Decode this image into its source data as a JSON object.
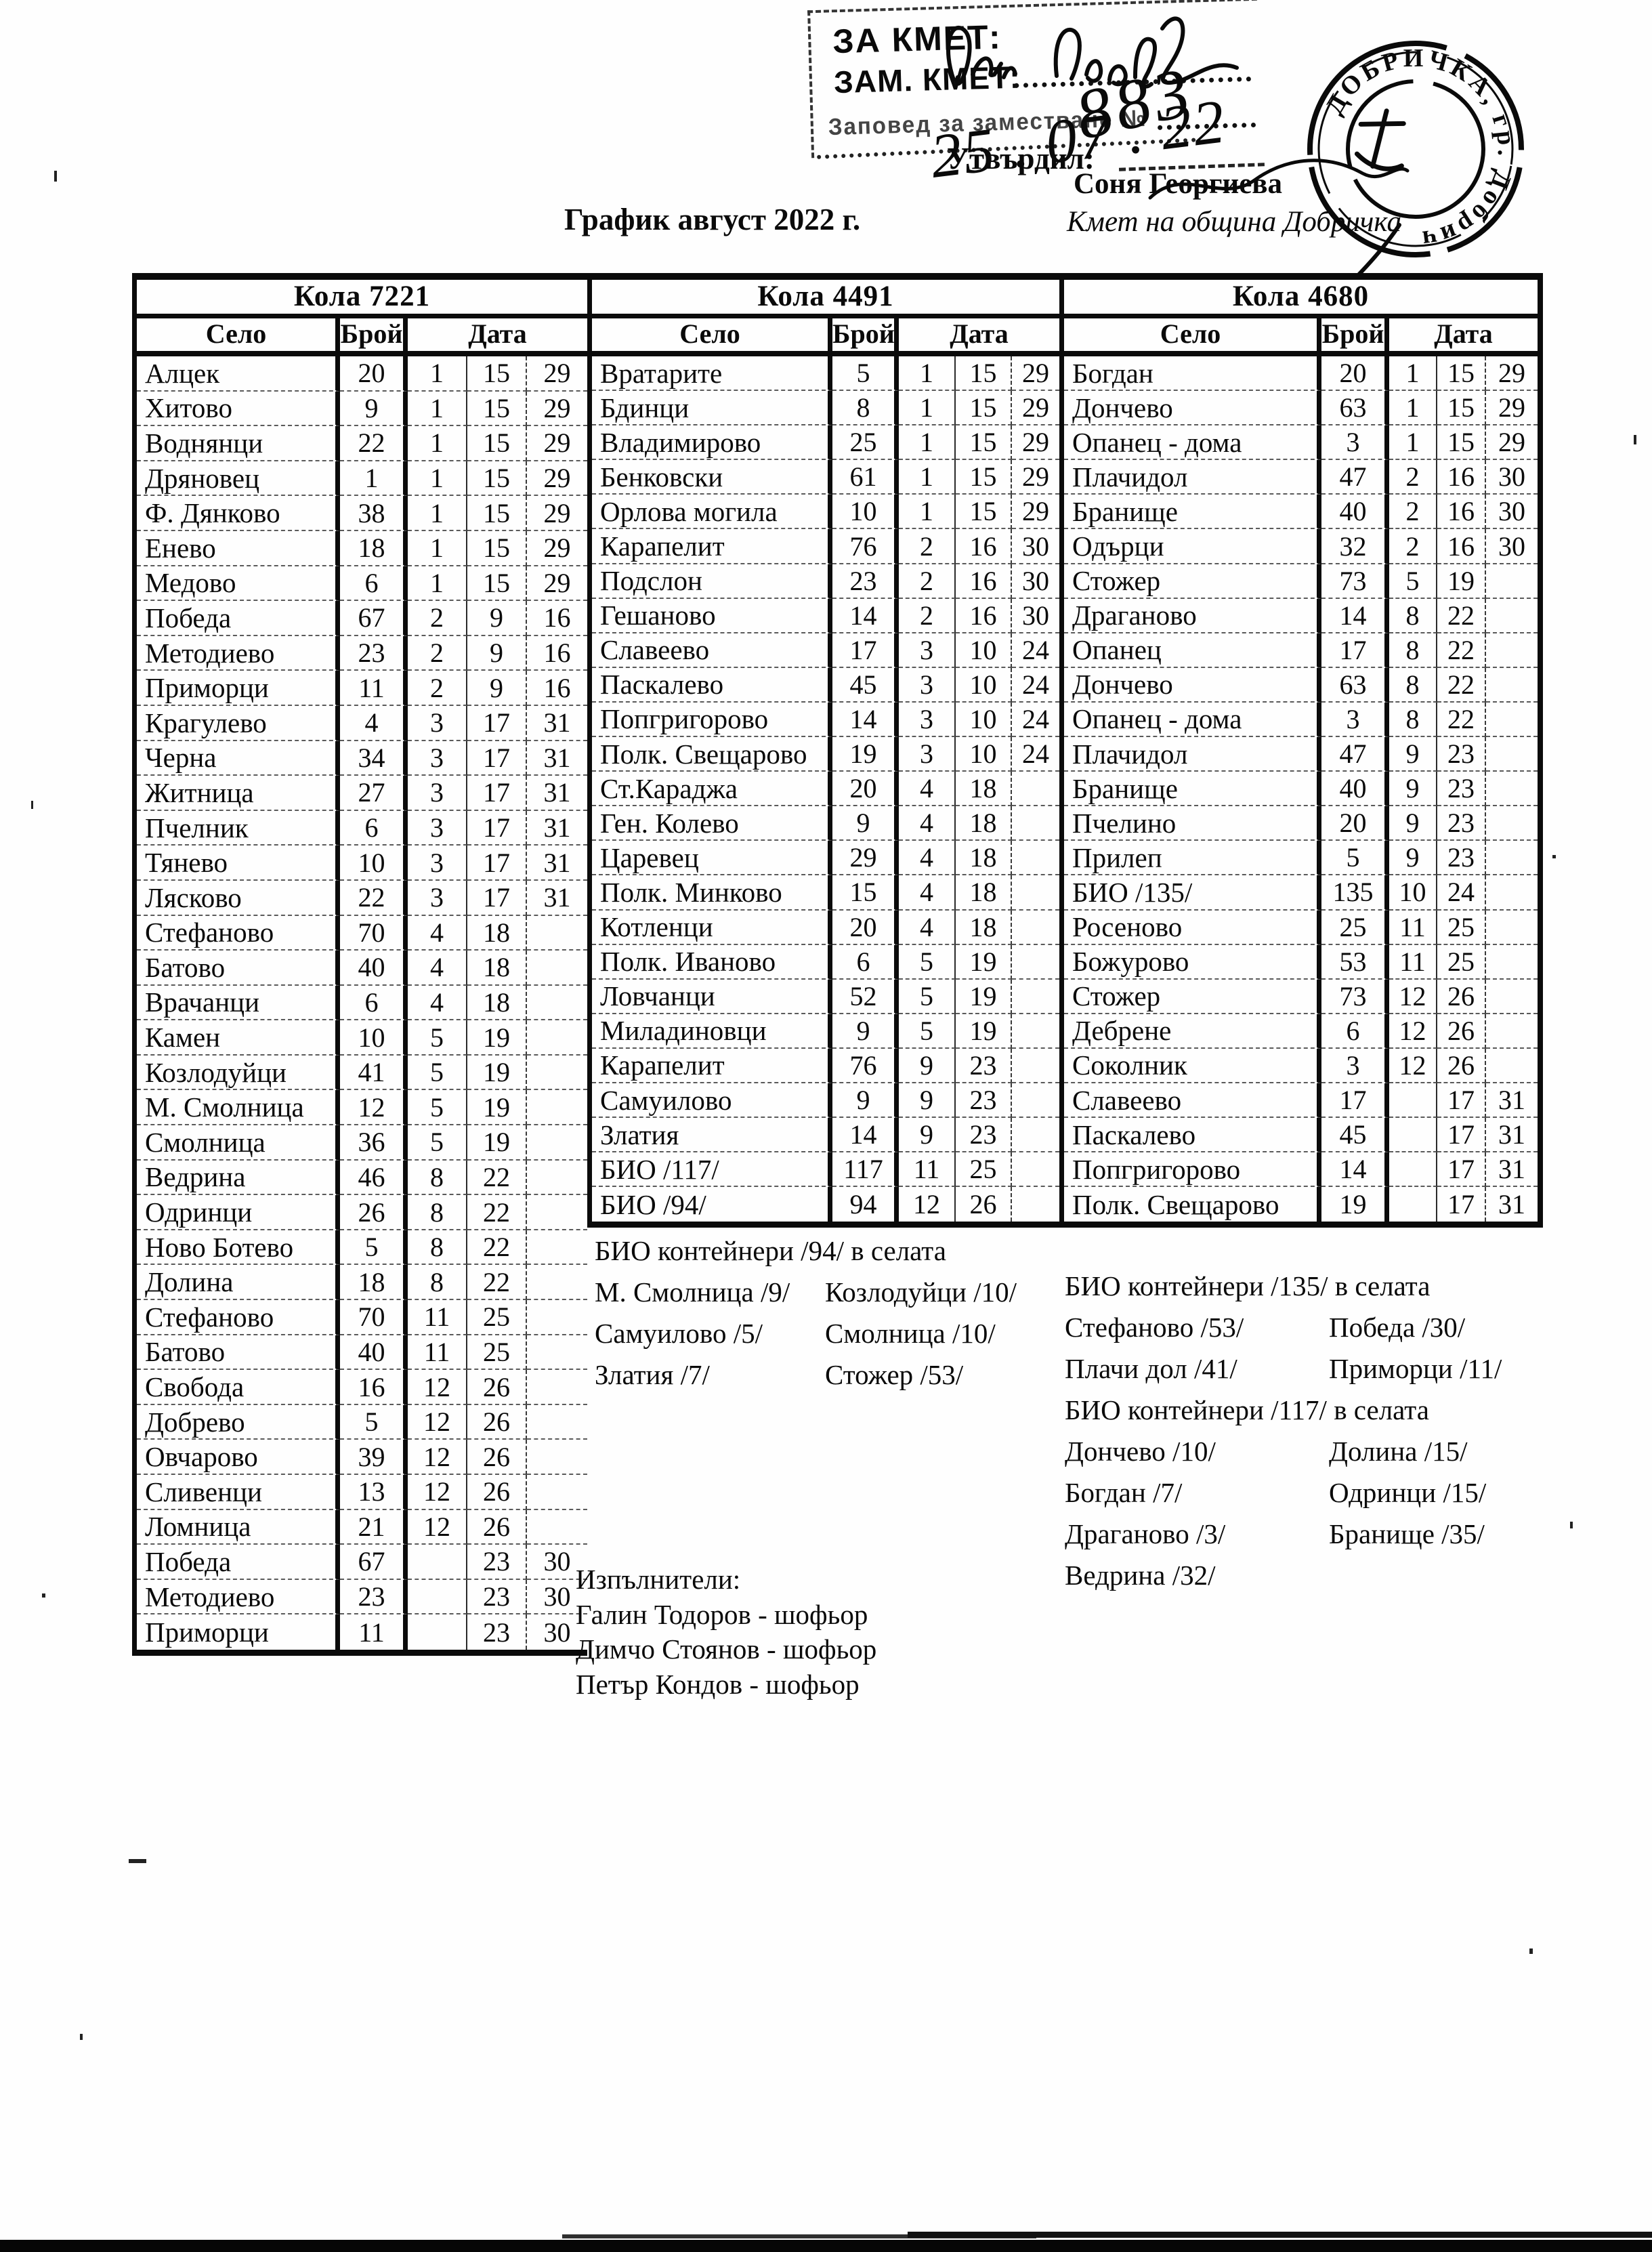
{
  "header": {
    "approval_box": {
      "for_mayor_label": "ЗА КМЕТ:",
      "deputy_mayor_label": "ЗАМ. КМЕТ:",
      "order_label": "Заповед за заместване №",
      "handwritten_order_number": "883",
      "handwritten_date": "25 . 07 . 22",
      "approved_label": "Утвърдил:"
    },
    "round_stamp_text": "ДОБРИЧКА, гр. Добрич",
    "signer_name": "Соня Георгиева",
    "signer_title": "Кмет на община Добричка",
    "doc_title": "График август 2022 г."
  },
  "table": {
    "column_headers": [
      "Село",
      "Брой",
      "Дата"
    ],
    "sections": [
      {
        "vehicle": "Кола 7221",
        "rows": [
          [
            "Алцек",
            "20",
            "1",
            "15",
            "29"
          ],
          [
            "Хитово",
            "9",
            "1",
            "15",
            "29"
          ],
          [
            "Воднянци",
            "22",
            "1",
            "15",
            "29"
          ],
          [
            "Дряновец",
            "1",
            "1",
            "15",
            "29"
          ],
          [
            "Ф. Дянково",
            "38",
            "1",
            "15",
            "29"
          ],
          [
            "Енево",
            "18",
            "1",
            "15",
            "29"
          ],
          [
            "Медово",
            "6",
            "1",
            "15",
            "29"
          ],
          [
            "Победа",
            "67",
            "2",
            "9",
            "16"
          ],
          [
            "Методиево",
            "23",
            "2",
            "9",
            "16"
          ],
          [
            "Приморци",
            "11",
            "2",
            "9",
            "16"
          ],
          [
            "Крагулево",
            "4",
            "3",
            "17",
            "31"
          ],
          [
            "Черна",
            "34",
            "3",
            "17",
            "31"
          ],
          [
            "Житница",
            "27",
            "3",
            "17",
            "31"
          ],
          [
            "Пчелник",
            "6",
            "3",
            "17",
            "31"
          ],
          [
            "Тянево",
            "10",
            "3",
            "17",
            "31"
          ],
          [
            "Лясково",
            "22",
            "3",
            "17",
            "31"
          ],
          [
            "Стефаново",
            "70",
            "4",
            "18",
            ""
          ],
          [
            "Батово",
            "40",
            "4",
            "18",
            ""
          ],
          [
            "Врачанци",
            "6",
            "4",
            "18",
            ""
          ],
          [
            "Камен",
            "10",
            "5",
            "19",
            ""
          ],
          [
            "Козлодуйци",
            "41",
            "5",
            "19",
            ""
          ],
          [
            "М. Смолница",
            "12",
            "5",
            "19",
            ""
          ],
          [
            "Смолница",
            "36",
            "5",
            "19",
            ""
          ],
          [
            "Ведрина",
            "46",
            "8",
            "22",
            ""
          ],
          [
            "Одринци",
            "26",
            "8",
            "22",
            ""
          ],
          [
            "Ново Ботево",
            "5",
            "8",
            "22",
            ""
          ],
          [
            "Долина",
            "18",
            "8",
            "22",
            ""
          ],
          [
            "Стефаново",
            "70",
            "11",
            "25",
            ""
          ],
          [
            "Батово",
            "40",
            "11",
            "25",
            ""
          ],
          [
            "Свобода",
            "16",
            "12",
            "26",
            ""
          ],
          [
            "Добрево",
            "5",
            "12",
            "26",
            ""
          ],
          [
            "Овчарово",
            "39",
            "12",
            "26",
            ""
          ],
          [
            "Сливенци",
            "13",
            "12",
            "26",
            ""
          ],
          [
            "Ломница",
            "21",
            "12",
            "26",
            ""
          ],
          [
            "Победа",
            "67",
            "",
            "23",
            "30"
          ],
          [
            "Методиево",
            "23",
            "",
            "23",
            "30"
          ],
          [
            "Приморци",
            "11",
            "",
            "23",
            "30"
          ]
        ]
      },
      {
        "vehicle": "Кола 4491",
        "rows": [
          [
            "Вратарите",
            "5",
            "1",
            "15",
            "29"
          ],
          [
            "Бдинци",
            "8",
            "1",
            "15",
            "29"
          ],
          [
            "Владимирово",
            "25",
            "1",
            "15",
            "29"
          ],
          [
            "Бенковски",
            "61",
            "1",
            "15",
            "29"
          ],
          [
            "Орлова могила",
            "10",
            "1",
            "15",
            "29"
          ],
          [
            "Карапелит",
            "76",
            "2",
            "16",
            "30"
          ],
          [
            "Подслон",
            "23",
            "2",
            "16",
            "30"
          ],
          [
            "Гешаново",
            "14",
            "2",
            "16",
            "30"
          ],
          [
            "Славеево",
            "17",
            "3",
            "10",
            "24"
          ],
          [
            "Паскалево",
            "45",
            "3",
            "10",
            "24"
          ],
          [
            "Попгригорово",
            "14",
            "3",
            "10",
            "24"
          ],
          [
            "Полк. Свещарово",
            "19",
            "3",
            "10",
            "24"
          ],
          [
            "Ст.Караджа",
            "20",
            "4",
            "18",
            ""
          ],
          [
            "Ген. Колево",
            "9",
            "4",
            "18",
            ""
          ],
          [
            "Царевец",
            "29",
            "4",
            "18",
            ""
          ],
          [
            "Полк. Минково",
            "15",
            "4",
            "18",
            ""
          ],
          [
            "Котленци",
            "20",
            "4",
            "18",
            ""
          ],
          [
            "Полк. Иваново",
            "6",
            "5",
            "19",
            ""
          ],
          [
            "Ловчанци",
            "52",
            "5",
            "19",
            ""
          ],
          [
            "Миладиновци",
            "9",
            "5",
            "19",
            ""
          ],
          [
            "Карапелит",
            "76",
            "9",
            "23",
            ""
          ],
          [
            "Самуилово",
            "9",
            "9",
            "23",
            ""
          ],
          [
            "Златия",
            "14",
            "9",
            "23",
            ""
          ],
          [
            "БИО /117/",
            "117",
            "11",
            "25",
            ""
          ],
          [
            "БИО /94/",
            "94",
            "12",
            "26",
            ""
          ]
        ]
      },
      {
        "vehicle": "Кола 4680",
        "rows": [
          [
            "Богдан",
            "20",
            "1",
            "15",
            "29"
          ],
          [
            "Дончево",
            "63",
            "1",
            "15",
            "29"
          ],
          [
            "Опанец - дома",
            "3",
            "1",
            "15",
            "29"
          ],
          [
            "Плачидол",
            "47",
            "2",
            "16",
            "30"
          ],
          [
            "Бранище",
            "40",
            "2",
            "16",
            "30"
          ],
          [
            "Одърци",
            "32",
            "2",
            "16",
            "30"
          ],
          [
            "Стожер",
            "73",
            "5",
            "19",
            ""
          ],
          [
            "Драганово",
            "14",
            "8",
            "22",
            ""
          ],
          [
            "Опанец",
            "17",
            "8",
            "22",
            ""
          ],
          [
            "Дончево",
            "63",
            "8",
            "22",
            ""
          ],
          [
            "Опанец - дома",
            "3",
            "8",
            "22",
            ""
          ],
          [
            "Плачидол",
            "47",
            "9",
            "23",
            ""
          ],
          [
            "Бранище",
            "40",
            "9",
            "23",
            ""
          ],
          [
            "Пчелино",
            "20",
            "9",
            "23",
            ""
          ],
          [
            "Прилеп",
            "5",
            "9",
            "23",
            ""
          ],
          [
            "БИО /135/",
            "135",
            "10",
            "24",
            ""
          ],
          [
            "Росеново",
            "25",
            "11",
            "25",
            ""
          ],
          [
            "Божурово",
            "53",
            "11",
            "25",
            ""
          ],
          [
            "Стожер",
            "73",
            "12",
            "26",
            ""
          ],
          [
            "Дебрене",
            "6",
            "12",
            "26",
            ""
          ],
          [
            "Соколник",
            "3",
            "12",
            "26",
            ""
          ],
          [
            "Славеево",
            "17",
            "",
            "17",
            "31"
          ],
          [
            "Паскалево",
            "45",
            "",
            "17",
            "31"
          ],
          [
            "Попгригорово",
            "14",
            "",
            "17",
            "31"
          ],
          [
            "Полк. Свещарово",
            "19",
            "",
            "17",
            "31"
          ]
        ]
      }
    ]
  },
  "notes": {
    "bio94_title": "БИО контейнери /94/ в селата",
    "bio94_rows": [
      [
        "М. Смолница /9/",
        "Козлодуйци /10/"
      ],
      [
        "Самуилово /5/",
        "Смолница /10/"
      ],
      [
        "Златия /7/",
        "Стожер /53/"
      ]
    ],
    "bio135_title": "БИО контейнери /135/ в селата",
    "bio135_rows": [
      [
        "Стефаново /53/",
        "Победа /30/"
      ],
      [
        "Плачи дол /41/",
        "Приморци /11/"
      ]
    ],
    "bio117_title": "БИО контейнери /117/ в селата",
    "bio117_rows": [
      [
        "Дончево /10/",
        "Долина /15/"
      ],
      [
        "Богдан /7/",
        "Одринци /15/"
      ],
      [
        "Драганово /3/",
        "Бранище /35/"
      ],
      [
        "Ведрина /32/",
        ""
      ]
    ],
    "executors_title": "Изпълнители:",
    "executors": [
      "Галин Тодоров - шофьор",
      "Димчо Стоянов - шофьор",
      "Петър Кондов - шофьор"
    ]
  }
}
